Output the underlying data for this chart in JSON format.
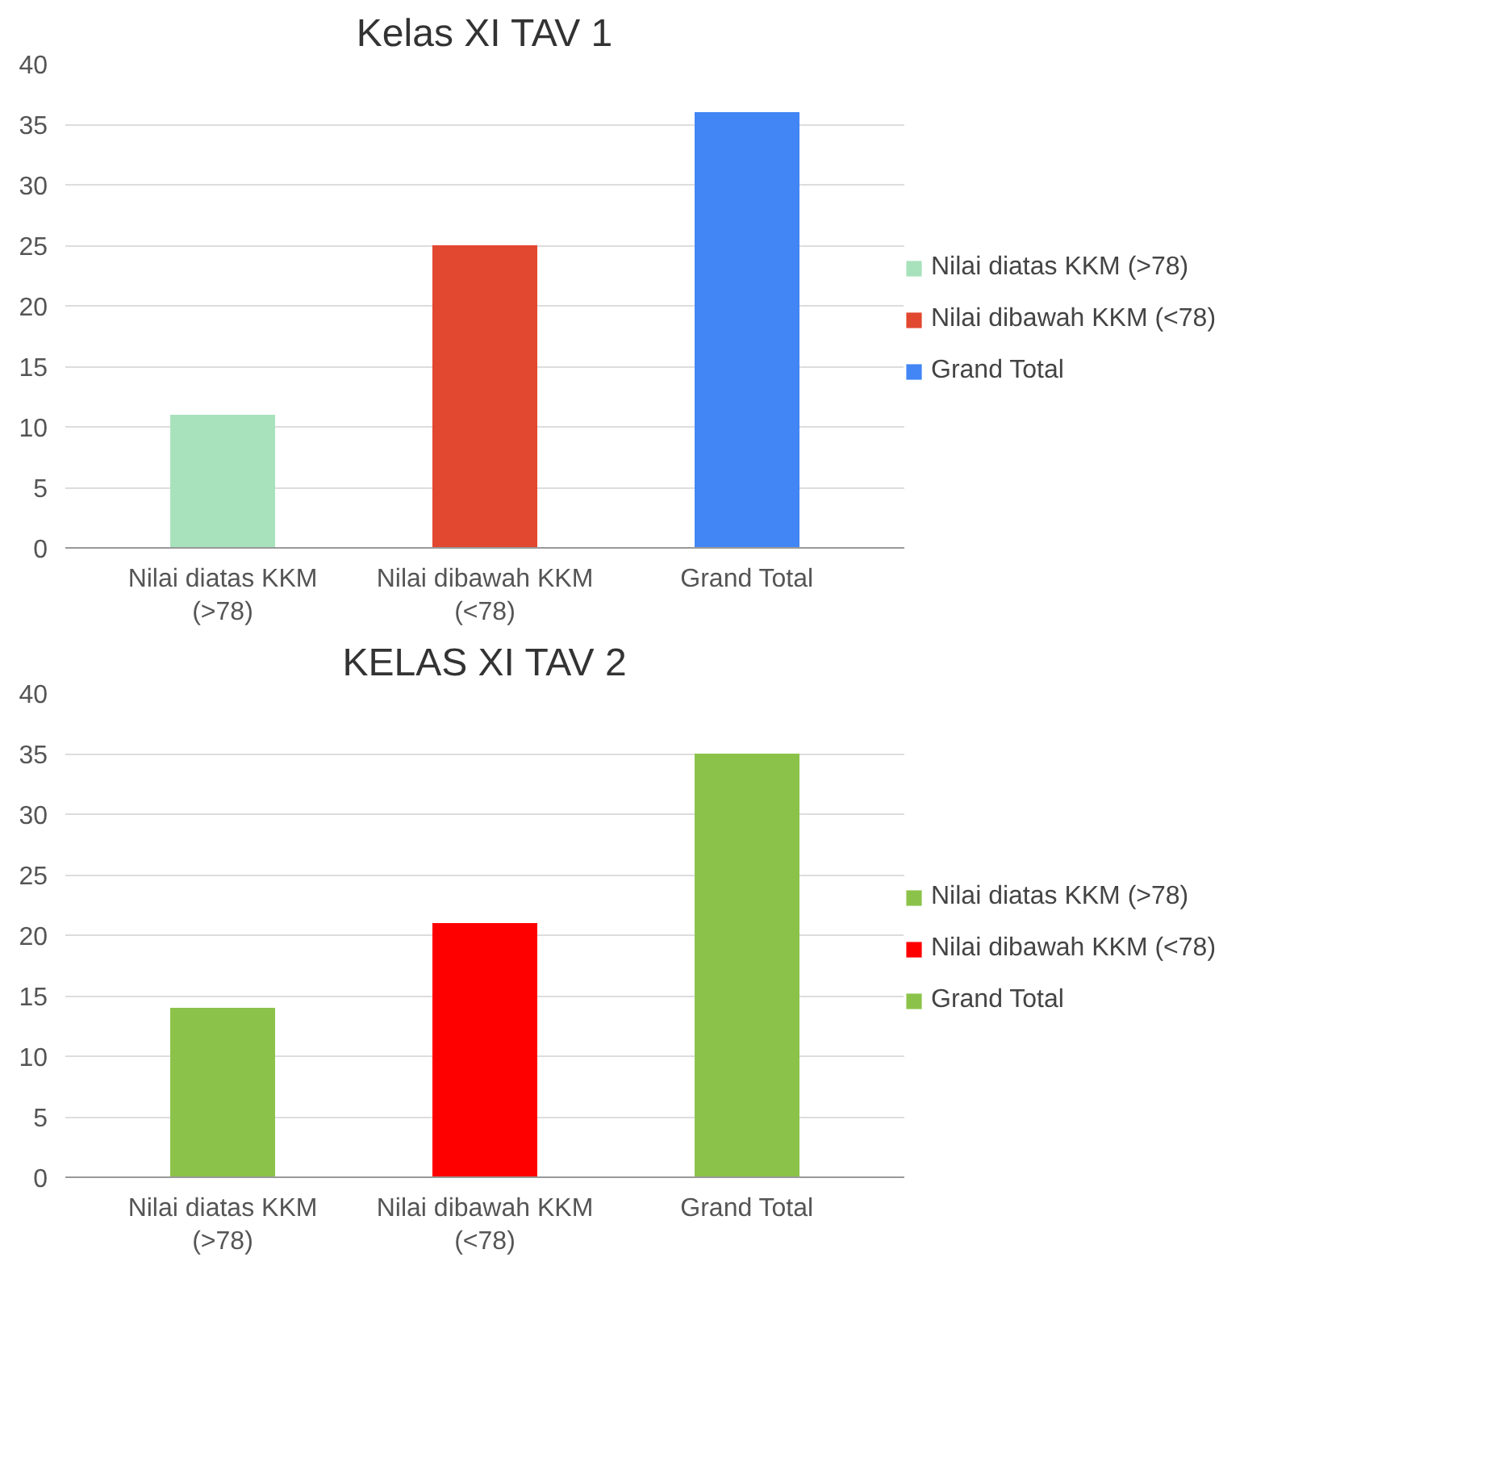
{
  "chart_data": [
    {
      "type": "bar",
      "title": "Kelas XI TAV 1",
      "categories": [
        "Nilai diatas KKM (>78)",
        "Nilai dibawah KKM (<78)",
        "Grand Total"
      ],
      "stacked": true,
      "series": [
        {
          "name": "Nilai diatas KKM (>78)",
          "color": "#a8e2bd",
          "values": [
            11,
            null,
            null
          ]
        },
        {
          "name": "Nilai dibawah KKM (<78)",
          "color": "#e2472f",
          "values": [
            null,
            25,
            null
          ]
        },
        {
          "name": "Grand Total",
          "color": "#4285f4",
          "values": [
            null,
            null,
            36
          ]
        }
      ],
      "ylim": [
        0,
        40
      ],
      "yticks": [
        0,
        5,
        10,
        15,
        20,
        25,
        30,
        35,
        40
      ],
      "grid": "y",
      "legend": "right"
    },
    {
      "type": "bar",
      "title": "KELAS XI TAV 2",
      "categories": [
        "Nilai diatas KKM (>78)",
        "Nilai dibawah KKM (<78)",
        "Grand Total"
      ],
      "stacked": true,
      "series": [
        {
          "name": "Nilai diatas KKM (>78)",
          "color": "#8bc34a",
          "values": [
            14,
            null,
            null
          ]
        },
        {
          "name": "Nilai dibawah KKM (<78)",
          "color": "#ff0000",
          "values": [
            null,
            21,
            null
          ]
        },
        {
          "name": "Grand Total",
          "color": "#8bc34a",
          "values": [
            null,
            null,
            35
          ]
        }
      ],
      "ylim": [
        0,
        40
      ],
      "yticks": [
        0,
        5,
        10,
        15,
        20,
        25,
        30,
        35,
        40
      ],
      "grid": "y",
      "legend": "right"
    }
  ]
}
